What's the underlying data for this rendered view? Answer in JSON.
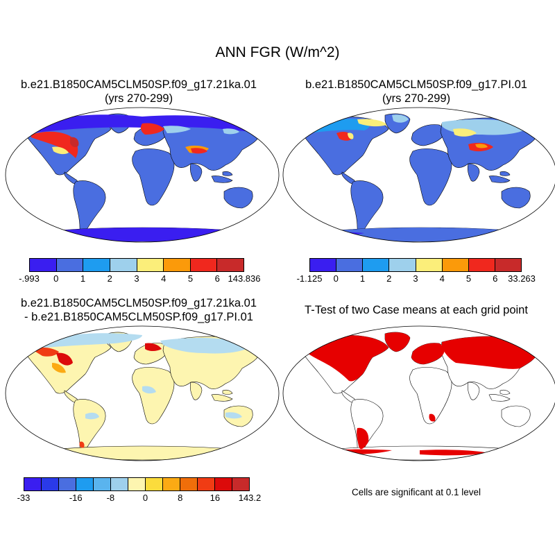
{
  "figure": {
    "title": "ANN FGR (W/m^2)"
  },
  "panels": [
    {
      "id": "case1",
      "title_line1": "b.e21.B1850CAM5CLM50SP.f09_g17.21ka.01",
      "title_line2": "(yrs 270-299)"
    },
    {
      "id": "case2",
      "title_line1": "b.e21.B1850CAM5CLM50SP.f09_g17.PI.01",
      "title_line2": "(yrs 270-299)"
    },
    {
      "id": "diff",
      "title_line1": "b.e21.B1850CAM5CLM50SP.f09_g17.21ka.01",
      "title_line2": "- b.e21.B1850CAM5CLM50SP.f09_g17.PI.01"
    },
    {
      "id": "ttest",
      "title_line1": "T-Test of two Case means at each grid point",
      "note": "Cells are significant at 0.1 level"
    }
  ],
  "colorbars": {
    "case1": {
      "colors": [
        "#3a1ef0",
        "#4a6ee0",
        "#1e9cf0",
        "#9ed0ec",
        "#fbee7a",
        "#fb9a0a",
        "#f0281e",
        "#c82a2a"
      ],
      "labels": [
        "-.993",
        "0",
        "1",
        "2",
        "3",
        "4",
        "5",
        "6",
        "143.836"
      ]
    },
    "case2": {
      "colors": [
        "#3a1ef0",
        "#4a6ee0",
        "#1e9cf0",
        "#9ed0ec",
        "#fbee7a",
        "#fb9a0a",
        "#f0281e",
        "#c82a2a"
      ],
      "labels": [
        "-1.125",
        "0",
        "1",
        "2",
        "3",
        "4",
        "5",
        "6",
        "33.263"
      ]
    },
    "diff": {
      "colors": [
        "#3a1ef0",
        "#2a3ae8",
        "#4a6ee0",
        "#1e9cf0",
        "#5ab4ee",
        "#9ed0ec",
        "#fdf5b0",
        "#fbdc3c",
        "#fbaa14",
        "#f06e0a",
        "#f03c14",
        "#dc0a0a",
        "#c82a2a"
      ],
      "labels": [
        "-33",
        "-16",
        "-8",
        "0",
        "8",
        "16",
        "143.2"
      ]
    }
  },
  "colors": {
    "ocean": "#ffffff",
    "land_low": "#4a6ee0",
    "land_mid": "#9ed0ec",
    "land_warm": "#fbee7a",
    "land_hot": "#f0281e",
    "diff_land": "#fdf5b0",
    "diff_cool": "#b4dcf0",
    "signif": "#e60000"
  }
}
